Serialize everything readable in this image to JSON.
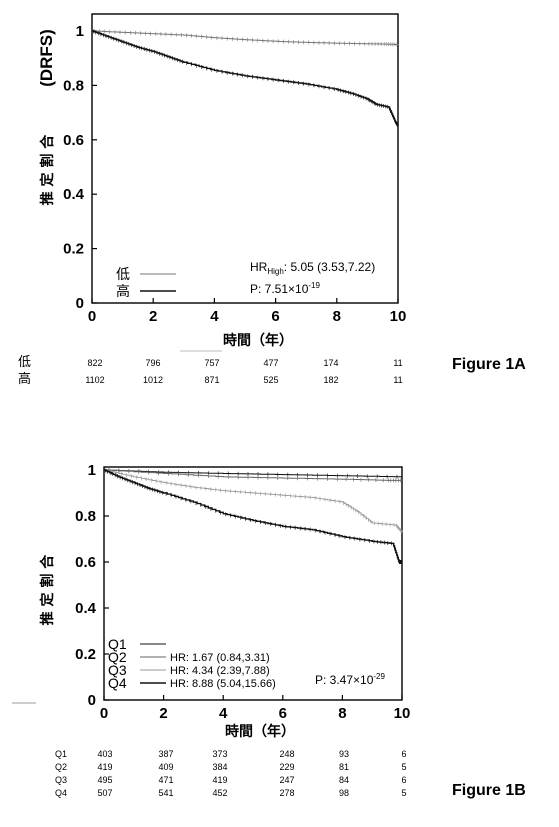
{
  "chart_data": [
    {
      "type": "line",
      "figure_label": "Figure 1A",
      "ylabel_main": "推 定 割 合",
      "ylabel_sub": "(DRFS)",
      "xlabel": "時間（年）",
      "xlim": [
        0,
        10
      ],
      "ylim": [
        0,
        1
      ],
      "xticks": [
        "0",
        "2",
        "4",
        "6",
        "8",
        "10"
      ],
      "yticks": [
        "0",
        "0.2",
        "0.4",
        "0.6",
        "0.8",
        "1"
      ],
      "grid": false,
      "legend_position": "bottom-left",
      "series": [
        {
          "name": "低",
          "style": "light",
          "x": [
            0,
            1,
            2,
            3,
            4,
            5,
            6,
            7,
            8,
            9,
            9.6,
            10
          ],
          "y": [
            1.0,
            0.995,
            0.99,
            0.985,
            0.975,
            0.968,
            0.962,
            0.958,
            0.955,
            0.953,
            0.952,
            0.95
          ]
        },
        {
          "name": "高",
          "style": "dark",
          "x": [
            0,
            0.5,
            1,
            1.5,
            2,
            2.5,
            3,
            4,
            5,
            6,
            7,
            8,
            8.5,
            9,
            9.3,
            9.7,
            9.9,
            10
          ],
          "y": [
            1.0,
            0.98,
            0.96,
            0.94,
            0.925,
            0.905,
            0.885,
            0.855,
            0.835,
            0.82,
            0.805,
            0.785,
            0.77,
            0.75,
            0.73,
            0.72,
            0.67,
            0.65
          ]
        }
      ],
      "annotations": {
        "hr_prefix": "HR",
        "hr_sub": "High",
        "hr_value": ": 5.05 (3.53,7.22)",
        "p_text": "P: 7.51×10",
        "p_exp": "-19"
      },
      "risk_table": {
        "rows": [
          {
            "label": "低",
            "values": [
              "822",
              "796",
              "757",
              "477",
              "174",
              "11"
            ]
          },
          {
            "label": "高",
            "values": [
              "1102",
              "1012",
              "871",
              "525",
              "182",
              "11"
            ]
          }
        ]
      }
    },
    {
      "type": "line",
      "figure_label": "Figure 1B",
      "ylabel_main": "推 定 割 合",
      "xlabel": "時間（年）",
      "xlim": [
        0,
        10
      ],
      "ylim": [
        0,
        1
      ],
      "xticks": [
        "0",
        "2",
        "4",
        "6",
        "8",
        "10"
      ],
      "yticks": [
        "0",
        "0.2",
        "0.4",
        "0.6",
        "0.8",
        "1"
      ],
      "grid": false,
      "legend_position": "bottom-left",
      "series": [
        {
          "name": "Q1",
          "style": "q1",
          "x": [
            0,
            2,
            4,
            6,
            8,
            10
          ],
          "y": [
            1.0,
            0.99,
            0.985,
            0.98,
            0.975,
            0.97
          ]
        },
        {
          "name": "Q2",
          "style": "q2",
          "x": [
            0,
            2,
            4,
            6,
            8,
            9.5,
            10
          ],
          "y": [
            1.0,
            0.985,
            0.97,
            0.965,
            0.96,
            0.955,
            0.955
          ]
        },
        {
          "name": "Q3",
          "style": "q3",
          "x": [
            0,
            1,
            2,
            3,
            4,
            5,
            6,
            7,
            8,
            8.5,
            9,
            9.8,
            10
          ],
          "y": [
            1.0,
            0.97,
            0.945,
            0.925,
            0.91,
            0.9,
            0.89,
            0.88,
            0.86,
            0.82,
            0.77,
            0.76,
            0.73
          ]
        },
        {
          "name": "Q4",
          "style": "q4",
          "x": [
            0,
            0.5,
            1,
            1.5,
            2,
            3,
            4,
            5,
            6,
            7,
            8,
            9,
            9.7,
            9.9,
            10
          ],
          "y": [
            1.0,
            0.97,
            0.945,
            0.92,
            0.9,
            0.86,
            0.81,
            0.78,
            0.755,
            0.74,
            0.71,
            0.69,
            0.68,
            0.6,
            0.6
          ]
        }
      ],
      "annotations": {
        "legend_hr": [
          "",
          "HR: 1.67 (0.84,3.31)",
          "HR: 4.34 (2.39,7.88)",
          "HR: 8.88 (5.04,15.66)"
        ],
        "p_text": "P: 3.47×10",
        "p_exp": "-29"
      },
      "risk_table": {
        "rows": [
          {
            "label": "Q1",
            "values": [
              "403",
              "387",
              "373",
              "248",
              "93",
              "6"
            ]
          },
          {
            "label": "Q2",
            "values": [
              "419",
              "409",
              "384",
              "229",
              "81",
              "5"
            ]
          },
          {
            "label": "Q3",
            "values": [
              "495",
              "471",
              "419",
              "247",
              "84",
              "6"
            ]
          },
          {
            "label": "Q4",
            "values": [
              "507",
              "541",
              "452",
              "278",
              "98",
              "5"
            ]
          }
        ]
      }
    }
  ]
}
